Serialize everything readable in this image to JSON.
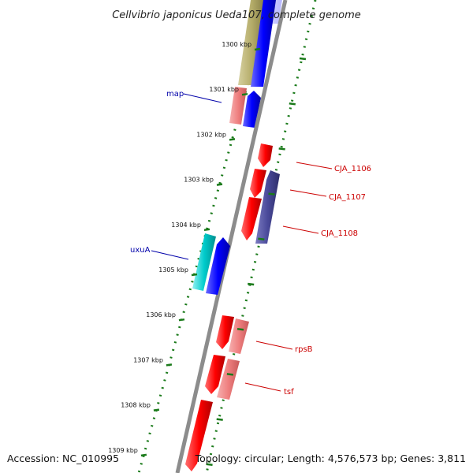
{
  "title": "Cellvibrio japonicus Ueda107, complete genome",
  "footer": {
    "accession": "Accession: NC_010995",
    "summary": "Topology: circular; Length: 4,576,573 bp; Genes: 3,811"
  },
  "colors": {
    "backbone": "#8c8c8c",
    "tick": "#1a7a1a",
    "forward_gene": "#ff0000",
    "forward_gene_light": "#ef7f7f",
    "reverse_gene": "#0000ff",
    "cyan_gene": "#00cccc",
    "olive_gene": "#b5ad6a",
    "purple_gene": "#4a4a9a",
    "label_blue": "#0000aa",
    "label_red": "#cc0000"
  },
  "ticks": [
    {
      "label": "1300 kbp"
    },
    {
      "label": "1301 kbp"
    },
    {
      "label": "1302 kbp"
    },
    {
      "label": "1303 kbp"
    },
    {
      "label": "1304 kbp"
    },
    {
      "label": "1305 kbp"
    },
    {
      "label": "1306 kbp"
    },
    {
      "label": "1307 kbp"
    },
    {
      "label": "1308 kbp"
    },
    {
      "label": "1309 kbp"
    }
  ],
  "gene_labels": [
    {
      "text": "map",
      "color": "label_blue"
    },
    {
      "text": "uxuA",
      "color": "label_blue"
    },
    {
      "text": "CJA_1106",
      "color": "label_red"
    },
    {
      "text": "CJA_1107",
      "color": "label_red"
    },
    {
      "text": "CJA_1108",
      "color": "label_red"
    },
    {
      "text": "rpsB",
      "color": "label_red"
    },
    {
      "text": "tsf",
      "color": "label_red"
    }
  ]
}
